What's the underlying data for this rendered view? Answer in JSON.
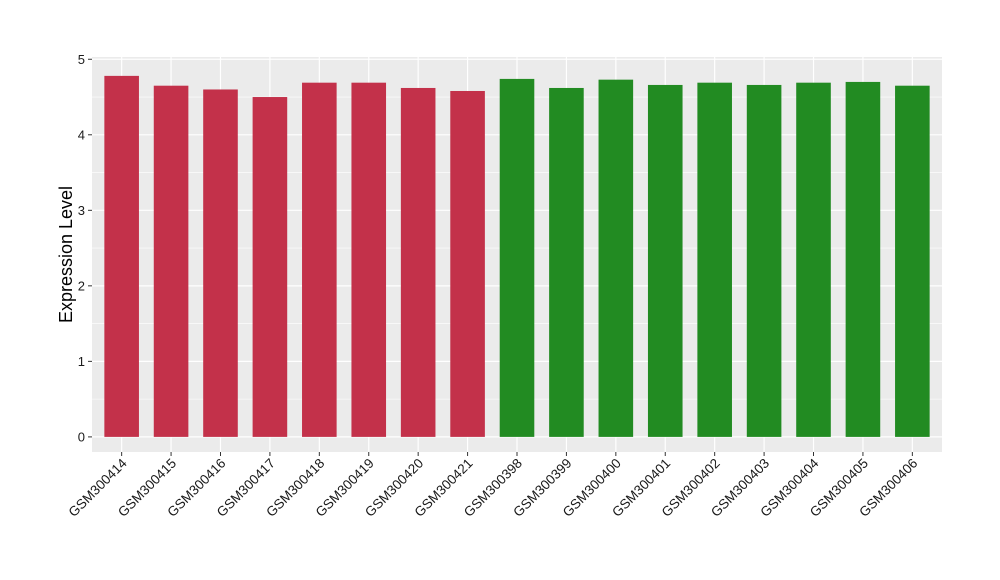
{
  "chart_data": {
    "type": "bar",
    "title": "",
    "xlabel": "",
    "ylabel": "Expression Level",
    "ylim": [
      -0.2,
      5.03
    ],
    "yticks": [
      0,
      1,
      2,
      3,
      4,
      5
    ],
    "grid": true,
    "legend": "none",
    "categories": [
      "GSM300414",
      "GSM300415",
      "GSM300416",
      "GSM300417",
      "GSM300418",
      "GSM300419",
      "GSM300420",
      "GSM300421",
      "GSM300398",
      "GSM300399",
      "GSM300400",
      "GSM300401",
      "GSM300402",
      "GSM300403",
      "GSM300404",
      "GSM300405",
      "GSM300406"
    ],
    "values": [
      4.78,
      4.65,
      4.6,
      4.5,
      4.69,
      4.69,
      4.62,
      4.58,
      4.74,
      4.62,
      4.73,
      4.66,
      4.69,
      4.66,
      4.69,
      4.7,
      4.65
    ],
    "bar_colors": [
      "#c3314a",
      "#c3314a",
      "#c3314a",
      "#c3314a",
      "#c3314a",
      "#c3314a",
      "#c3314a",
      "#c3314a",
      "#228b22",
      "#228b22",
      "#228b22",
      "#228b22",
      "#228b22",
      "#228b22",
      "#228b22",
      "#228b22",
      "#228b22"
    ],
    "colors": {
      "group_a": "#c3314a",
      "group_b": "#228b22",
      "panel_background": "#ebebeb",
      "gridline": "#ffffff"
    }
  }
}
